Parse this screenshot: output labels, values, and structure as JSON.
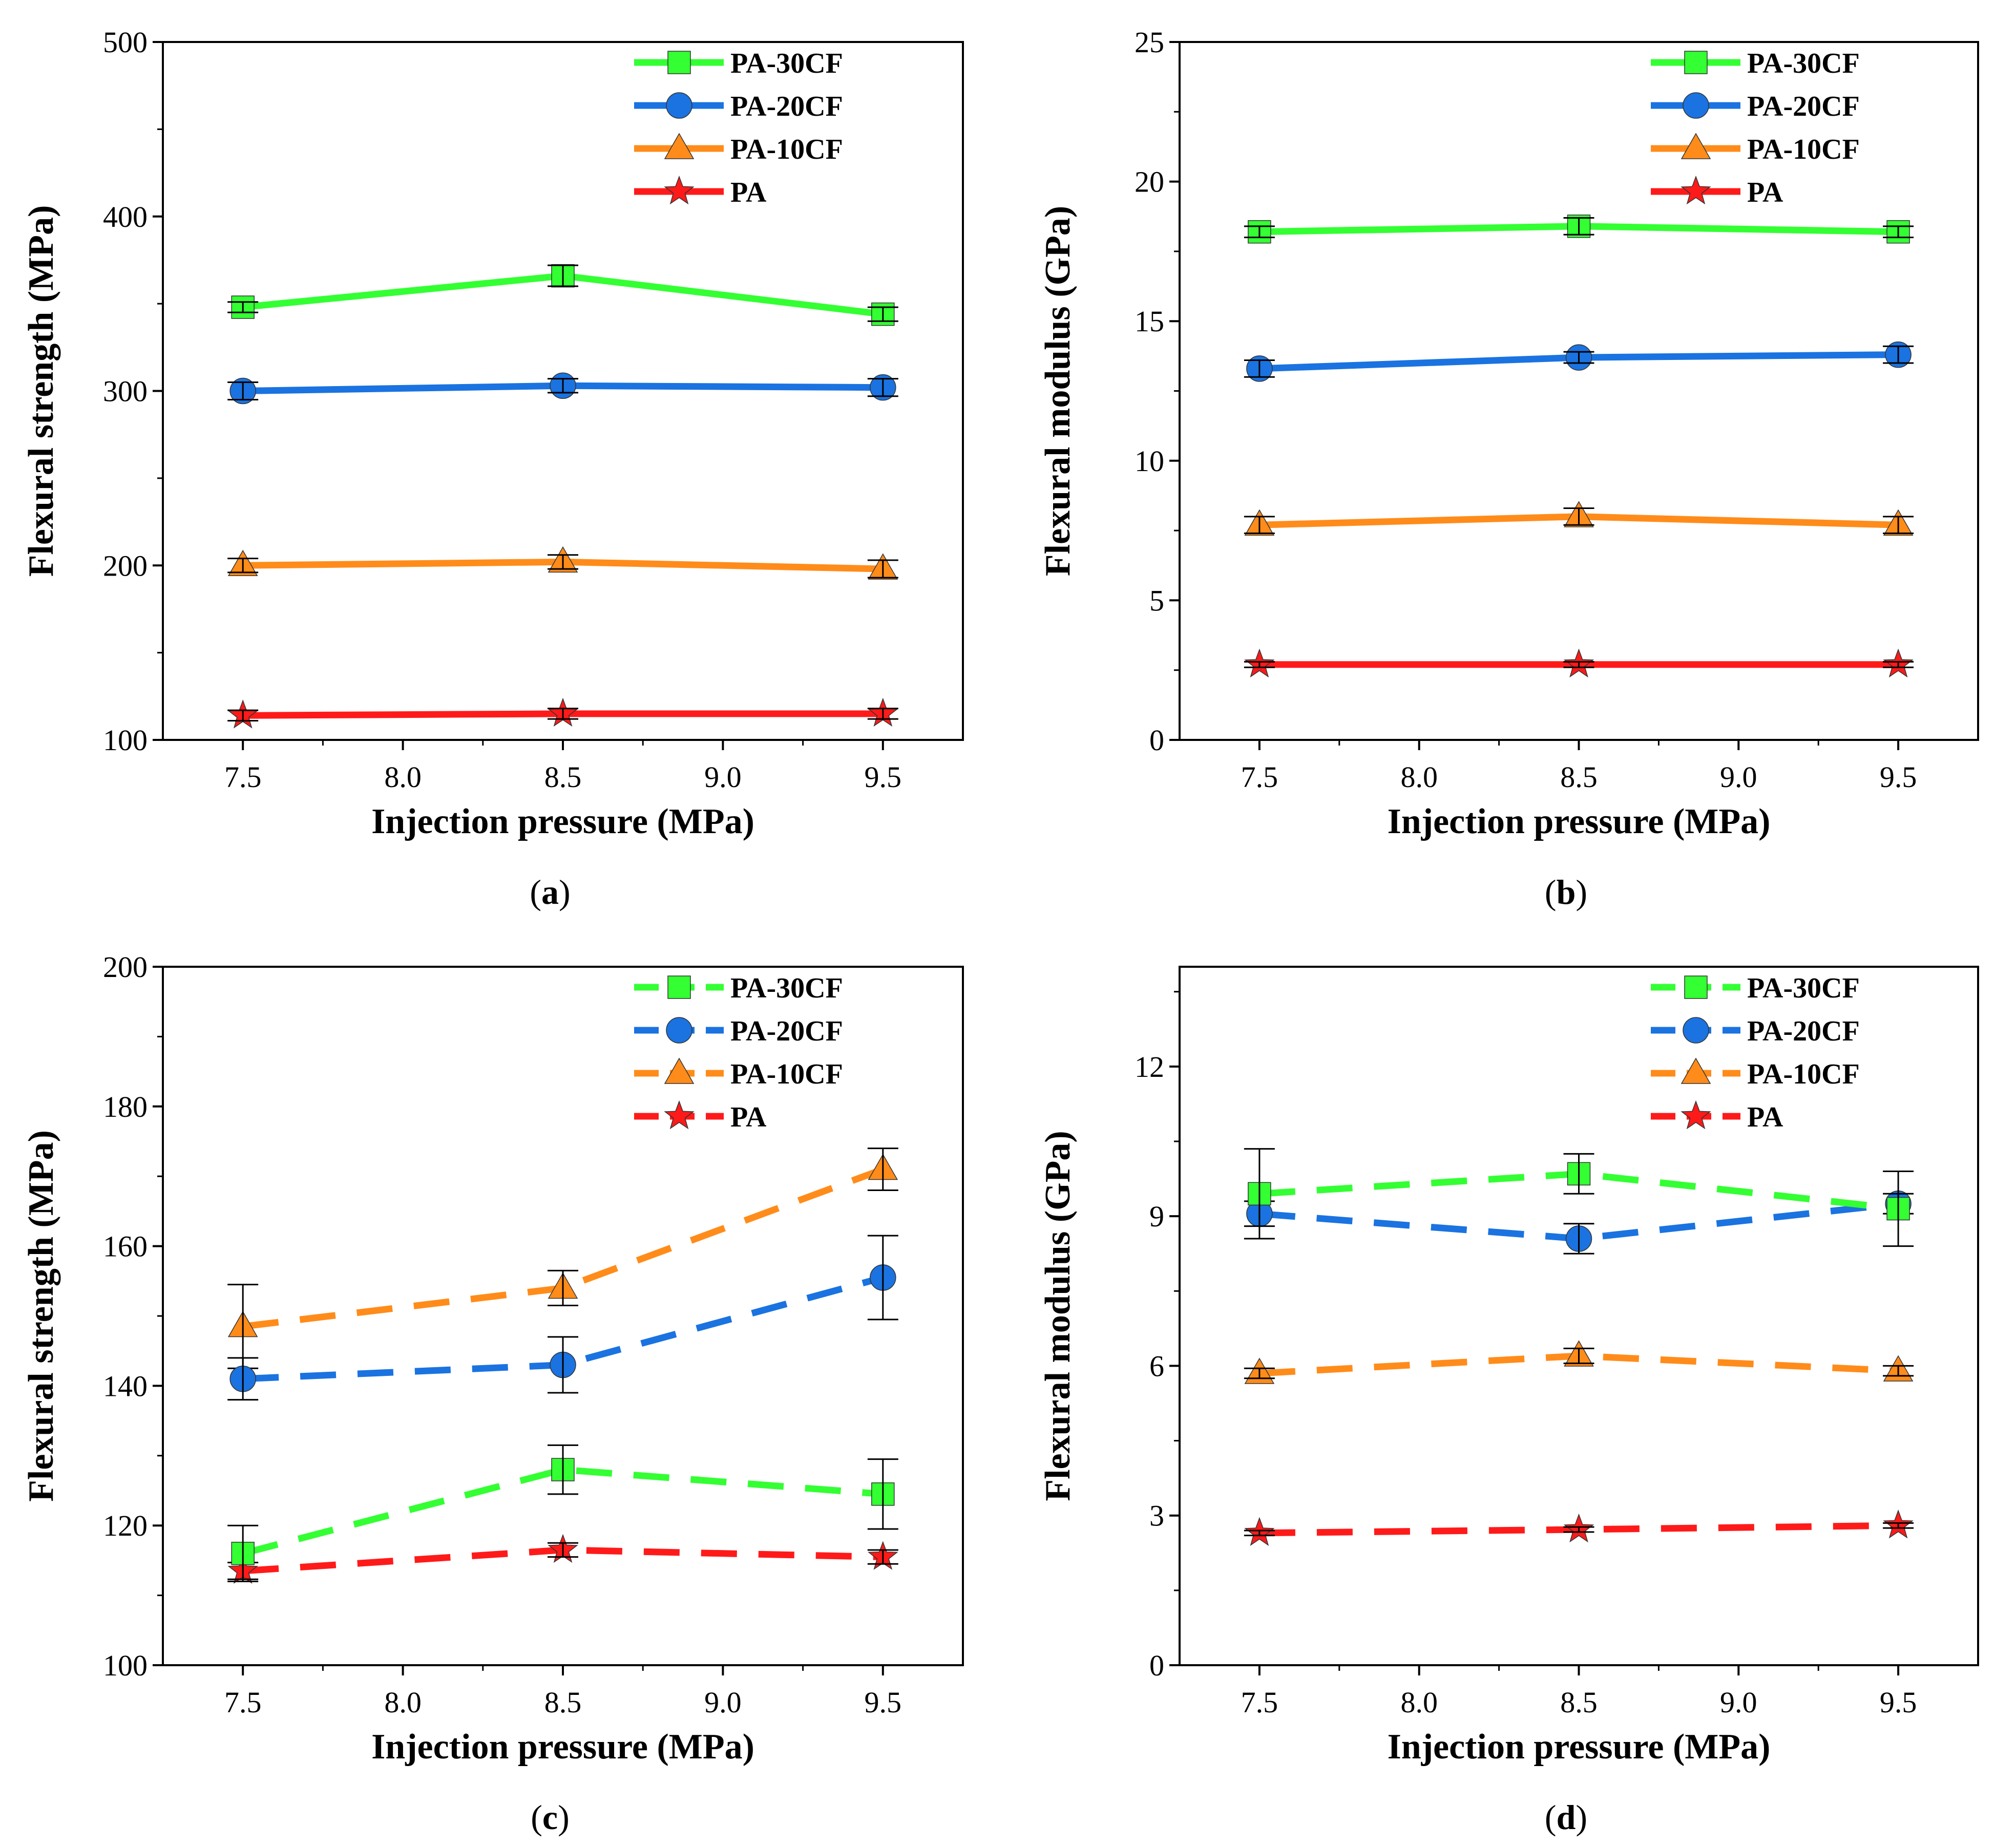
{
  "figure": {
    "panels": [
      "a",
      "b",
      "c",
      "d"
    ]
  },
  "chart_data": [
    {
      "id": "a",
      "type": "line",
      "caption": "(a)",
      "caption_letter": "a",
      "line_style": "solid",
      "xlabel": "Injection pressure (MPa)",
      "ylabel": "Flexural strength (MPa)",
      "xlim": [
        7.25,
        9.75
      ],
      "ylim": [
        100,
        500
      ],
      "xticks": [
        "7.5",
        "8.0",
        "8.5",
        "9.0",
        "9.5"
      ],
      "yticks": [
        "100",
        "200",
        "300",
        "400",
        "500"
      ],
      "x": [
        7.5,
        8.5,
        9.5
      ],
      "legend_position": "top-right",
      "series": [
        {
          "name": "PA-30CF",
          "color": "#33FF33",
          "marker": "square",
          "values": [
            348,
            366,
            344
          ],
          "errors": [
            3,
            6,
            4
          ]
        },
        {
          "name": "PA-20CF",
          "color": "#1A73E0",
          "marker": "circle",
          "values": [
            300,
            303,
            302
          ],
          "errors": [
            5,
            4,
            5
          ]
        },
        {
          "name": "PA-10CF",
          "color": "#FF8C1A",
          "marker": "triangle",
          "values": [
            200,
            202,
            198
          ],
          "errors": [
            4,
            4,
            5
          ]
        },
        {
          "name": "PA",
          "color": "#FF1A1A",
          "marker": "star",
          "values": [
            114,
            115,
            115
          ],
          "errors": [
            3,
            3,
            3
          ]
        }
      ]
    },
    {
      "id": "b",
      "type": "line",
      "caption": "(b)",
      "caption_letter": "b",
      "line_style": "solid",
      "xlabel": "Injection pressure (MPa)",
      "ylabel": "Flexural modulus (GPa)",
      "xlim": [
        7.25,
        9.75
      ],
      "ylim": [
        0,
        25
      ],
      "xticks": [
        "7.5",
        "8.0",
        "8.5",
        "9.0",
        "9.5"
      ],
      "yticks": [
        "0",
        "5",
        "10",
        "15",
        "20",
        "25"
      ],
      "x": [
        7.5,
        8.5,
        9.5
      ],
      "legend_position": "top-right",
      "series": [
        {
          "name": "PA-30CF",
          "color": "#33FF33",
          "marker": "square",
          "values": [
            18.2,
            18.4,
            18.2
          ],
          "errors": [
            0.2,
            0.3,
            0.2
          ]
        },
        {
          "name": "PA-20CF",
          "color": "#1A73E0",
          "marker": "circle",
          "values": [
            13.3,
            13.7,
            13.8
          ],
          "errors": [
            0.3,
            0.2,
            0.3
          ]
        },
        {
          "name": "PA-10CF",
          "color": "#FF8C1A",
          "marker": "triangle",
          "values": [
            7.7,
            8.0,
            7.7
          ],
          "errors": [
            0.3,
            0.3,
            0.3
          ]
        },
        {
          "name": "PA",
          "color": "#FF1A1A",
          "marker": "star",
          "values": [
            2.7,
            2.7,
            2.7
          ],
          "errors": [
            0.1,
            0.1,
            0.1
          ]
        }
      ]
    },
    {
      "id": "c",
      "type": "line",
      "caption": "(c)",
      "caption_letter": "c",
      "line_style": "dashed",
      "xlabel": "Injection pressure (MPa)",
      "ylabel": "Flexural strength (MPa)",
      "xlim": [
        7.25,
        9.75
      ],
      "ylim": [
        100,
        200
      ],
      "xticks": [
        "7.5",
        "8.0",
        "8.5",
        "9.0",
        "9.5"
      ],
      "yticks": [
        "100",
        "120",
        "140",
        "160",
        "180",
        "200"
      ],
      "x": [
        7.5,
        8.5,
        9.5
      ],
      "legend_position": "top-right",
      "series": [
        {
          "name": "PA-30CF",
          "color": "#33FF33",
          "marker": "square",
          "values": [
            116,
            128,
            124.5
          ],
          "errors": [
            4,
            3.5,
            5
          ]
        },
        {
          "name": "PA-20CF",
          "color": "#1A73E0",
          "marker": "circle",
          "values": [
            141,
            143,
            155.5
          ],
          "errors": [
            3,
            4,
            6
          ]
        },
        {
          "name": "PA-10CF",
          "color": "#FF8C1A",
          "marker": "triangle",
          "values": [
            148.5,
            154,
            171
          ],
          "errors": [
            6,
            2.5,
            3
          ]
        },
        {
          "name": "PA",
          "color": "#FF1A1A",
          "marker": "star",
          "values": [
            113.5,
            116.5,
            115.5
          ],
          "errors": [
            1.2,
            1,
            1
          ]
        }
      ]
    },
    {
      "id": "d",
      "type": "line",
      "caption": "(d)",
      "caption_letter": "d",
      "line_style": "dashed",
      "xlabel": "Injection pressure (MPa)",
      "ylabel": "Flexural modulus (GPa)",
      "xlim": [
        7.25,
        9.75
      ],
      "ylim": [
        0,
        14
      ],
      "xticks": [
        "7.5",
        "8.0",
        "8.5",
        "9.0",
        "9.5"
      ],
      "yticks": [
        "0",
        "3",
        "6",
        "9",
        "12"
      ],
      "x": [
        7.5,
        8.5,
        9.5
      ],
      "legend_position": "top-right",
      "series": [
        {
          "name": "PA-30CF",
          "color": "#33FF33",
          "marker": "square",
          "values": [
            9.45,
            9.85,
            9.15
          ],
          "errors": [
            0.9,
            0.4,
            0.75
          ]
        },
        {
          "name": "PA-20CF",
          "color": "#1A73E0",
          "marker": "circle",
          "values": [
            9.05,
            8.55,
            9.25
          ],
          "errors": [
            0.25,
            0.3,
            0.2
          ]
        },
        {
          "name": "PA-10CF",
          "color": "#FF8C1A",
          "marker": "triangle",
          "values": [
            5.85,
            6.2,
            5.9
          ],
          "errors": [
            0.1,
            0.15,
            0.1
          ]
        },
        {
          "name": "PA",
          "color": "#FF1A1A",
          "marker": "star",
          "values": [
            2.65,
            2.72,
            2.8
          ],
          "errors": [
            0.05,
            0.05,
            0.05
          ]
        }
      ]
    }
  ]
}
